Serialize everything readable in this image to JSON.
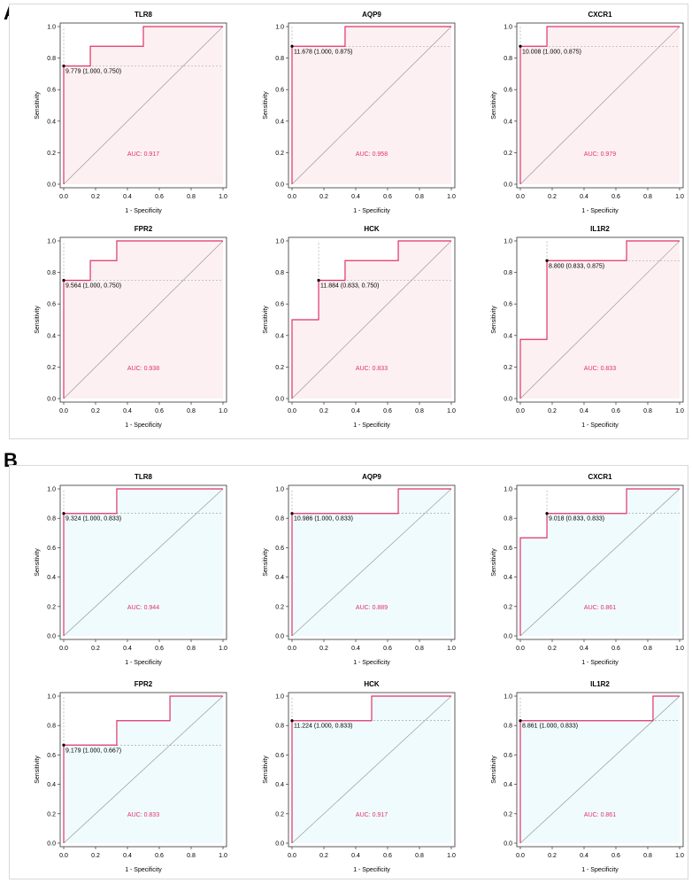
{
  "figure": {
    "panels": [
      {
        "label": "A",
        "fill_color": "#fdf0f2",
        "line_color": "#e0326a",
        "auc_color": "#e0326a"
      },
      {
        "label": "B",
        "fill_color": "#f0fbfd",
        "line_color": "#e0326a",
        "auc_color": "#e0326a"
      }
    ]
  },
  "chart_data": [
    {
      "panel": "A",
      "type": "line",
      "title": "TLR8",
      "xlabel": "1 - Specificity",
      "ylabel": "Sensitivity",
      "xlim": [
        0,
        1
      ],
      "ylim": [
        0,
        1
      ],
      "xticks": [
        "0.0",
        "0.2",
        "0.4",
        "0.6",
        "0.8",
        "1.0"
      ],
      "yticks": [
        "0.0",
        "0.2",
        "0.4",
        "0.6",
        "0.8",
        "1.0"
      ],
      "x": [
        0,
        0,
        0.167,
        0.167,
        0.5,
        0.5,
        1
      ],
      "y": [
        0,
        0.75,
        0.75,
        0.875,
        0.875,
        1,
        1
      ],
      "best_point": [
        0,
        0.75
      ],
      "best_label": "9.779 (1.000, 0.750)",
      "auc_label": "AUC: 0.917"
    },
    {
      "panel": "A",
      "type": "line",
      "title": "AQP9",
      "xlabel": "1 - Specificity",
      "ylabel": "Sensitivity",
      "xlim": [
        0,
        1
      ],
      "ylim": [
        0,
        1
      ],
      "xticks": [
        "0.0",
        "0.2",
        "0.4",
        "0.6",
        "0.8",
        "1.0"
      ],
      "yticks": [
        "0.0",
        "0.2",
        "0.4",
        "0.6",
        "0.8",
        "1.0"
      ],
      "x": [
        0,
        0,
        0.333,
        0.333,
        1
      ],
      "y": [
        0,
        0.875,
        0.875,
        1,
        1
      ],
      "best_point": [
        0,
        0.875
      ],
      "best_label": "11.678 (1.000, 0.875)",
      "auc_label": "AUC: 0.958"
    },
    {
      "panel": "A",
      "type": "line",
      "title": "CXCR1",
      "xlabel": "1 - Specificity",
      "ylabel": "Sensitivity",
      "xlim": [
        0,
        1
      ],
      "ylim": [
        0,
        1
      ],
      "xticks": [
        "0.0",
        "0.2",
        "0.4",
        "0.6",
        "0.8",
        "1.0"
      ],
      "yticks": [
        "0.0",
        "0.2",
        "0.4",
        "0.6",
        "0.8",
        "1.0"
      ],
      "x": [
        0,
        0,
        0.167,
        0.167,
        1
      ],
      "y": [
        0,
        0.875,
        0.875,
        1,
        1
      ],
      "best_point": [
        0,
        0.875
      ],
      "best_label": "10.008 (1.000, 0.875)",
      "auc_label": "AUC: 0.979"
    },
    {
      "panel": "A",
      "type": "line",
      "title": "FPR2",
      "xlabel": "1 - Specificity",
      "ylabel": "Sensitivity",
      "xlim": [
        0,
        1
      ],
      "ylim": [
        0,
        1
      ],
      "xticks": [
        "0.0",
        "0.2",
        "0.4",
        "0.6",
        "0.8",
        "1.0"
      ],
      "yticks": [
        "0.0",
        "0.2",
        "0.4",
        "0.6",
        "0.8",
        "1.0"
      ],
      "x": [
        0,
        0,
        0.167,
        0.167,
        0.333,
        0.333,
        1
      ],
      "y": [
        0,
        0.75,
        0.75,
        0.875,
        0.875,
        1,
        1
      ],
      "best_point": [
        0,
        0.75
      ],
      "best_label": "9.564 (1.000, 0.750)",
      "auc_label": "AUC: 0.938"
    },
    {
      "panel": "A",
      "type": "line",
      "title": "HCK",
      "xlabel": "1 - Specificity",
      "ylabel": "Sensitivity",
      "xlim": [
        0,
        1
      ],
      "ylim": [
        0,
        1
      ],
      "xticks": [
        "0.0",
        "0.2",
        "0.4",
        "0.6",
        "0.8",
        "1.0"
      ],
      "yticks": [
        "0.0",
        "0.2",
        "0.4",
        "0.6",
        "0.8",
        "1.0"
      ],
      "x": [
        0,
        0,
        0.167,
        0.167,
        0.333,
        0.333,
        0.667,
        0.667,
        1
      ],
      "y": [
        0,
        0.5,
        0.5,
        0.75,
        0.75,
        0.875,
        0.875,
        1,
        1
      ],
      "best_point": [
        0.167,
        0.75
      ],
      "best_label": "11.884 (0.833, 0.750)",
      "auc_label": "AUC: 0.833"
    },
    {
      "panel": "A",
      "type": "line",
      "title": "IL1R2",
      "xlabel": "1 - Specificity",
      "ylabel": "Sensitivity",
      "xlim": [
        0,
        1
      ],
      "ylim": [
        0,
        1
      ],
      "xticks": [
        "0.0",
        "0.2",
        "0.4",
        "0.6",
        "0.8",
        "1.0"
      ],
      "yticks": [
        "0.0",
        "0.2",
        "0.4",
        "0.6",
        "0.8",
        "1.0"
      ],
      "x": [
        0,
        0,
        0.167,
        0.167,
        0.667,
        0.667,
        1
      ],
      "y": [
        0,
        0.375,
        0.375,
        0.875,
        0.875,
        1,
        1
      ],
      "best_point": [
        0.167,
        0.875
      ],
      "best_label": "8.800 (0.833, 0.875)",
      "auc_label": "AUC: 0.833"
    },
    {
      "panel": "B",
      "type": "line",
      "title": "TLR8",
      "xlabel": "1 - Specificity",
      "ylabel": "Sensitivity",
      "xlim": [
        0,
        1
      ],
      "ylim": [
        0,
        1
      ],
      "xticks": [
        "0.0",
        "0.2",
        "0.4",
        "0.6",
        "0.8",
        "1.0"
      ],
      "yticks": [
        "0.0",
        "0.2",
        "0.4",
        "0.6",
        "0.8",
        "1.0"
      ],
      "x": [
        0,
        0,
        0.333,
        0.333,
        1
      ],
      "y": [
        0,
        0.833,
        0.833,
        1,
        1
      ],
      "best_point": [
        0,
        0.833
      ],
      "best_label": "9.324 (1.000, 0.833)",
      "auc_label": "AUC: 0.944"
    },
    {
      "panel": "B",
      "type": "line",
      "title": "AQP9",
      "xlabel": "1 - Specificity",
      "ylabel": "Sensitivity",
      "xlim": [
        0,
        1
      ],
      "ylim": [
        0,
        1
      ],
      "xticks": [
        "0.0",
        "0.2",
        "0.4",
        "0.6",
        "0.8",
        "1.0"
      ],
      "yticks": [
        "0.0",
        "0.2",
        "0.4",
        "0.6",
        "0.8",
        "1.0"
      ],
      "x": [
        0,
        0,
        0.667,
        0.667,
        1
      ],
      "y": [
        0,
        0.833,
        0.833,
        1,
        1
      ],
      "best_point": [
        0,
        0.833
      ],
      "best_label": "10.986 (1.000, 0.833)",
      "auc_label": "AUC: 0.889"
    },
    {
      "panel": "B",
      "type": "line",
      "title": "CXCR1",
      "xlabel": "1 - Specificity",
      "ylabel": "Sensitivity",
      "xlim": [
        0,
        1
      ],
      "ylim": [
        0,
        1
      ],
      "xticks": [
        "0.0",
        "0.2",
        "0.4",
        "0.6",
        "0.8",
        "1.0"
      ],
      "yticks": [
        "0.0",
        "0.2",
        "0.4",
        "0.6",
        "0.8",
        "1.0"
      ],
      "x": [
        0,
        0,
        0.167,
        0.167,
        0.667,
        0.667,
        1
      ],
      "y": [
        0,
        0.667,
        0.667,
        0.833,
        0.833,
        1,
        1
      ],
      "best_point": [
        0.167,
        0.833
      ],
      "best_label": "9.018 (0.833, 0.833)",
      "auc_label": "AUC: 0.861"
    },
    {
      "panel": "B",
      "type": "line",
      "title": "FPR2",
      "xlabel": "1 - Specificity",
      "ylabel": "Sensitivity",
      "xlim": [
        0,
        1
      ],
      "ylim": [
        0,
        1
      ],
      "xticks": [
        "0.0",
        "0.2",
        "0.4",
        "0.6",
        "0.8",
        "1.0"
      ],
      "yticks": [
        "0.0",
        "0.2",
        "0.4",
        "0.6",
        "0.8",
        "1.0"
      ],
      "x": [
        0,
        0,
        0.333,
        0.333,
        0.667,
        0.667,
        1
      ],
      "y": [
        0,
        0.667,
        0.667,
        0.833,
        0.833,
        1,
        1
      ],
      "best_point": [
        0,
        0.667
      ],
      "best_label": "9.179 (1.000, 0.667)",
      "auc_label": "AUC: 0.833"
    },
    {
      "panel": "B",
      "type": "line",
      "title": "HCK",
      "xlabel": "1 - Specificity",
      "ylabel": "Sensitivity",
      "xlim": [
        0,
        1
      ],
      "ylim": [
        0,
        1
      ],
      "xticks": [
        "0.0",
        "0.2",
        "0.4",
        "0.6",
        "0.8",
        "1.0"
      ],
      "yticks": [
        "0.0",
        "0.2",
        "0.4",
        "0.6",
        "0.8",
        "1.0"
      ],
      "x": [
        0,
        0,
        0.5,
        0.5,
        1
      ],
      "y": [
        0,
        0.833,
        0.833,
        1,
        1
      ],
      "best_point": [
        0,
        0.833
      ],
      "best_label": "11.224 (1.000, 0.833)",
      "auc_label": "AUC: 0.917"
    },
    {
      "panel": "B",
      "type": "line",
      "title": "IL1R2",
      "xlabel": "1 - Specificity",
      "ylabel": "Sensitivity",
      "xlim": [
        0,
        1
      ],
      "ylim": [
        0,
        1
      ],
      "xticks": [
        "0.0",
        "0.2",
        "0.4",
        "0.6",
        "0.8",
        "1.0"
      ],
      "yticks": [
        "0.0",
        "0.2",
        "0.4",
        "0.6",
        "0.8",
        "1.0"
      ],
      "x": [
        0,
        0,
        0.833,
        0.833,
        1
      ],
      "y": [
        0,
        0.833,
        0.833,
        1,
        1
      ],
      "best_point": [
        0,
        0.833
      ],
      "best_label": "8.861 (1.000, 0.833)",
      "auc_label": "AUC: 0.861"
    }
  ]
}
